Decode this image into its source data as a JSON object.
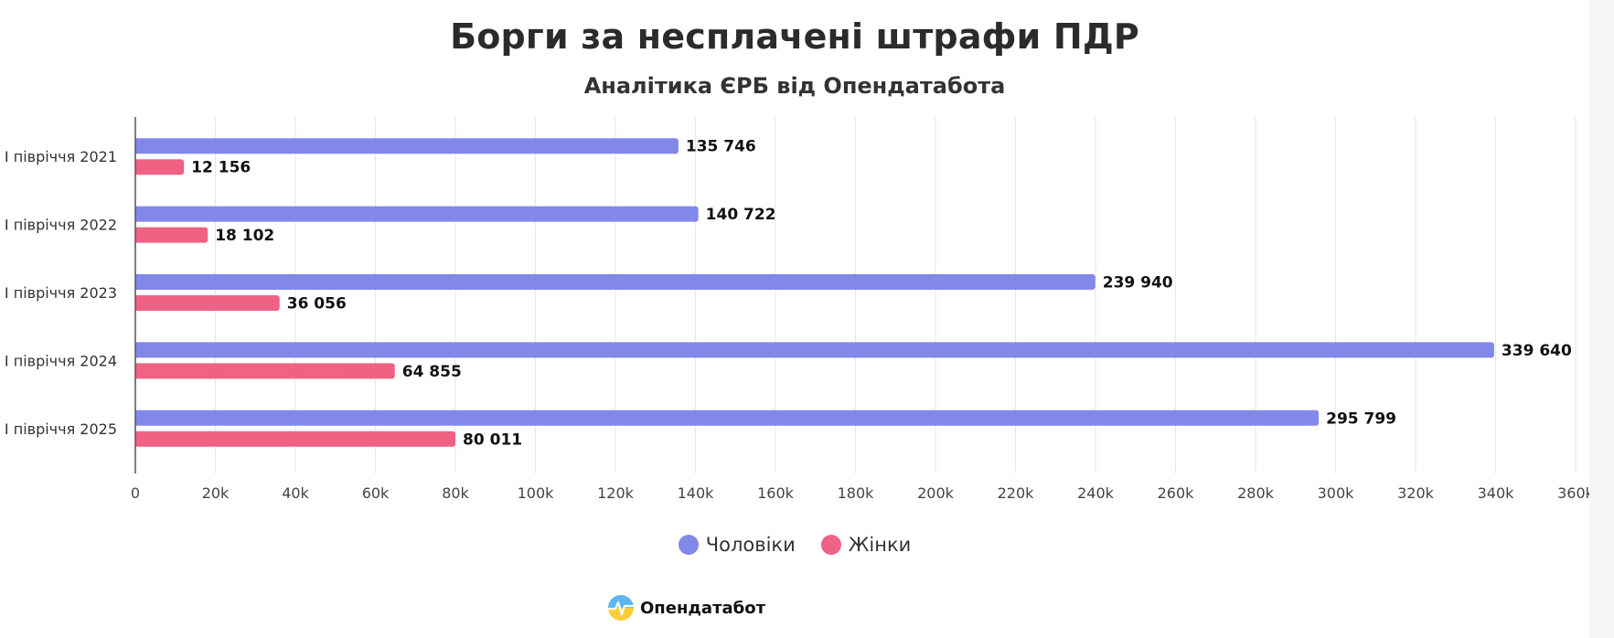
{
  "chart_data": {
    "type": "bar",
    "orientation": "horizontal",
    "title": "Борги за несплачені штрафи ПДР",
    "subtitle": "Аналітика ЄРБ від Опендатабота",
    "categories": [
      "І півріччя 2021",
      "І півріччя 2022",
      "І півріччя 2023",
      "І півріччя 2024",
      "І півріччя 2025"
    ],
    "series": [
      {
        "name": "Чоловіки",
        "color": "#8288e8",
        "values": [
          135746,
          140722,
          239940,
          339640,
          295799
        ],
        "labels": [
          "135 746",
          "140 722",
          "239 940",
          "339 640",
          "295 799"
        ]
      },
      {
        "name": "Жінки",
        "color": "#f06284",
        "values": [
          12156,
          18102,
          36056,
          64855,
          80011
        ],
        "labels": [
          "12 156",
          "18 102",
          "36 056",
          "64 855",
          "80 011"
        ]
      }
    ],
    "xlim": [
      0,
      360000
    ],
    "xticks": [
      0,
      20000,
      40000,
      60000,
      80000,
      100000,
      120000,
      140000,
      160000,
      180000,
      200000,
      220000,
      240000,
      260000,
      280000,
      300000,
      320000,
      340000,
      360000
    ],
    "xtick_labels": [
      "0",
      "20k",
      "40k",
      "60k",
      "80k",
      "100k",
      "120k",
      "140k",
      "160k",
      "180k",
      "200k",
      "220k",
      "240k",
      "260k",
      "280k",
      "300k",
      "320k",
      "340k",
      "360k"
    ],
    "grid": true,
    "legend_position": "bottom"
  },
  "brand": {
    "name": "Опендатабот",
    "logo_icon": "opendatabot-logo-icon"
  }
}
